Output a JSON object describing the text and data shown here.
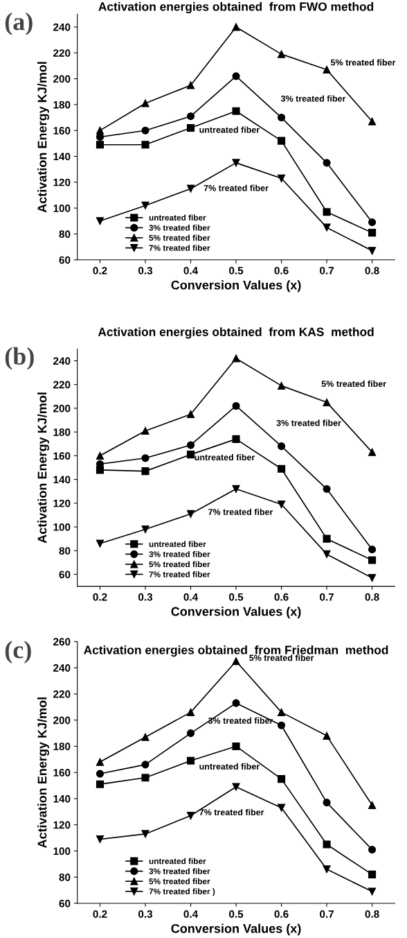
{
  "chart_data": [
    {
      "type": "line",
      "title": "Activation energies obtained  from FWO method",
      "xlabel": "Conversion Values (x)",
      "ylabel": "Activation Energy KJ/mol",
      "x": [
        0.2,
        0.3,
        0.4,
        0.5,
        0.6,
        0.7,
        0.8
      ],
      "xlim": [
        0.15,
        0.85
      ],
      "xticks": [
        0.2,
        0.3,
        0.4,
        0.5,
        0.6,
        0.7,
        0.8
      ],
      "ylim": [
        60,
        250
      ],
      "yticks": [
        60,
        80,
        100,
        120,
        140,
        160,
        180,
        200,
        220,
        240
      ],
      "grid": false,
      "legend": "bottom left",
      "series": [
        {
          "name": "untreated fiber",
          "color": "#000000",
          "marker": "square",
          "values": [
            149,
            149,
            162,
            175,
            152,
            97,
            81
          ]
        },
        {
          "name": "3% treated fiber",
          "color": "#000000",
          "marker": "circle",
          "values": [
            155,
            160,
            171,
            202,
            170,
            135,
            89
          ]
        },
        {
          "name": "5% treated fiber",
          "color": "#000000",
          "marker": "triangle",
          "values": [
            160,
            181,
            195,
            240,
            219,
            207,
            167
          ]
        },
        {
          "name": "7% treated fiber",
          "color": "#000000",
          "marker": "triangle_down",
          "values": [
            90,
            102,
            115,
            135,
            123,
            85,
            67
          ]
        }
      ],
      "annotations": [
        "(a)",
        "5% treated fiber",
        "3% treated fiber",
        "untreated fiber",
        "7% treated fiber"
      ]
    },
    {
      "type": "line",
      "title": "Activation energies obtained  from KAS  method",
      "xlabel": "Conversion Values (x)",
      "ylabel": "Activation Energy KJ/mol",
      "x": [
        0.2,
        0.3,
        0.4,
        0.5,
        0.6,
        0.7,
        0.8
      ],
      "xlim": [
        0.15,
        0.85
      ],
      "xticks": [
        0.2,
        0.3,
        0.4,
        0.5,
        0.6,
        0.7,
        0.8
      ],
      "ylim": [
        50,
        250
      ],
      "yticks": [
        60,
        80,
        100,
        120,
        140,
        160,
        180,
        200,
        220,
        240
      ],
      "grid": false,
      "legend": "bottom left",
      "series": [
        {
          "name": "untreated fiber",
          "color": "#000000",
          "marker": "square",
          "values": [
            148,
            147,
            161,
            174,
            149,
            90,
            72
          ]
        },
        {
          "name": "3% treated fiber",
          "color": "#000000",
          "marker": "circle",
          "values": [
            153,
            158,
            169,
            202,
            168,
            132,
            81
          ]
        },
        {
          "name": "5% treated fiber",
          "color": "#000000",
          "marker": "triangle",
          "values": [
            160,
            181,
            195,
            242,
            219,
            205,
            163
          ]
        },
        {
          "name": "7% treated fiber",
          "color": "#000000",
          "marker": "triangle_down",
          "values": [
            86,
            98,
            111,
            132,
            119,
            77,
            57
          ]
        }
      ],
      "annotations": [
        "(b)",
        "5% treated fiber",
        "3% treated fiber",
        "untreated fiber",
        "7% treated fiber"
      ]
    },
    {
      "type": "line",
      "title": "Activation energies obtained  from Friedman  method",
      "xlabel": "Conversion Values (x)",
      "ylabel": "Activation Energy KJ/mol",
      "x": [
        0.2,
        0.3,
        0.4,
        0.5,
        0.6,
        0.7,
        0.8
      ],
      "xlim": [
        0.15,
        0.85
      ],
      "xticks": [
        0.2,
        0.3,
        0.4,
        0.5,
        0.6,
        0.7,
        0.8
      ],
      "ylim": [
        60,
        260
      ],
      "yticks": [
        60,
        80,
        100,
        120,
        140,
        160,
        180,
        200,
        220,
        240,
        260
      ],
      "grid": false,
      "legend": "bottom left",
      "series": [
        {
          "name": "untreated fiber",
          "color": "#000000",
          "marker": "square",
          "values": [
            151,
            156,
            169,
            180,
            155,
            105,
            82
          ]
        },
        {
          "name": "3% treated fiber",
          "color": "#000000",
          "marker": "circle",
          "values": [
            159,
            166,
            190,
            213,
            196,
            137,
            101
          ]
        },
        {
          "name": "5% treated fiber",
          "color": "#000000",
          "marker": "triangle",
          "values": [
            168,
            187,
            206,
            245,
            206,
            188,
            135
          ]
        },
        {
          "name": "7% treated fiber )",
          "color": "#000000",
          "marker": "triangle_down",
          "values": [
            109,
            113,
            127,
            149,
            133,
            86,
            69
          ]
        }
      ],
      "annotations": [
        "(c)",
        "5% treated fiber",
        "3% treated fiber",
        "untreated fiber",
        "7% treated fiber"
      ]
    }
  ]
}
